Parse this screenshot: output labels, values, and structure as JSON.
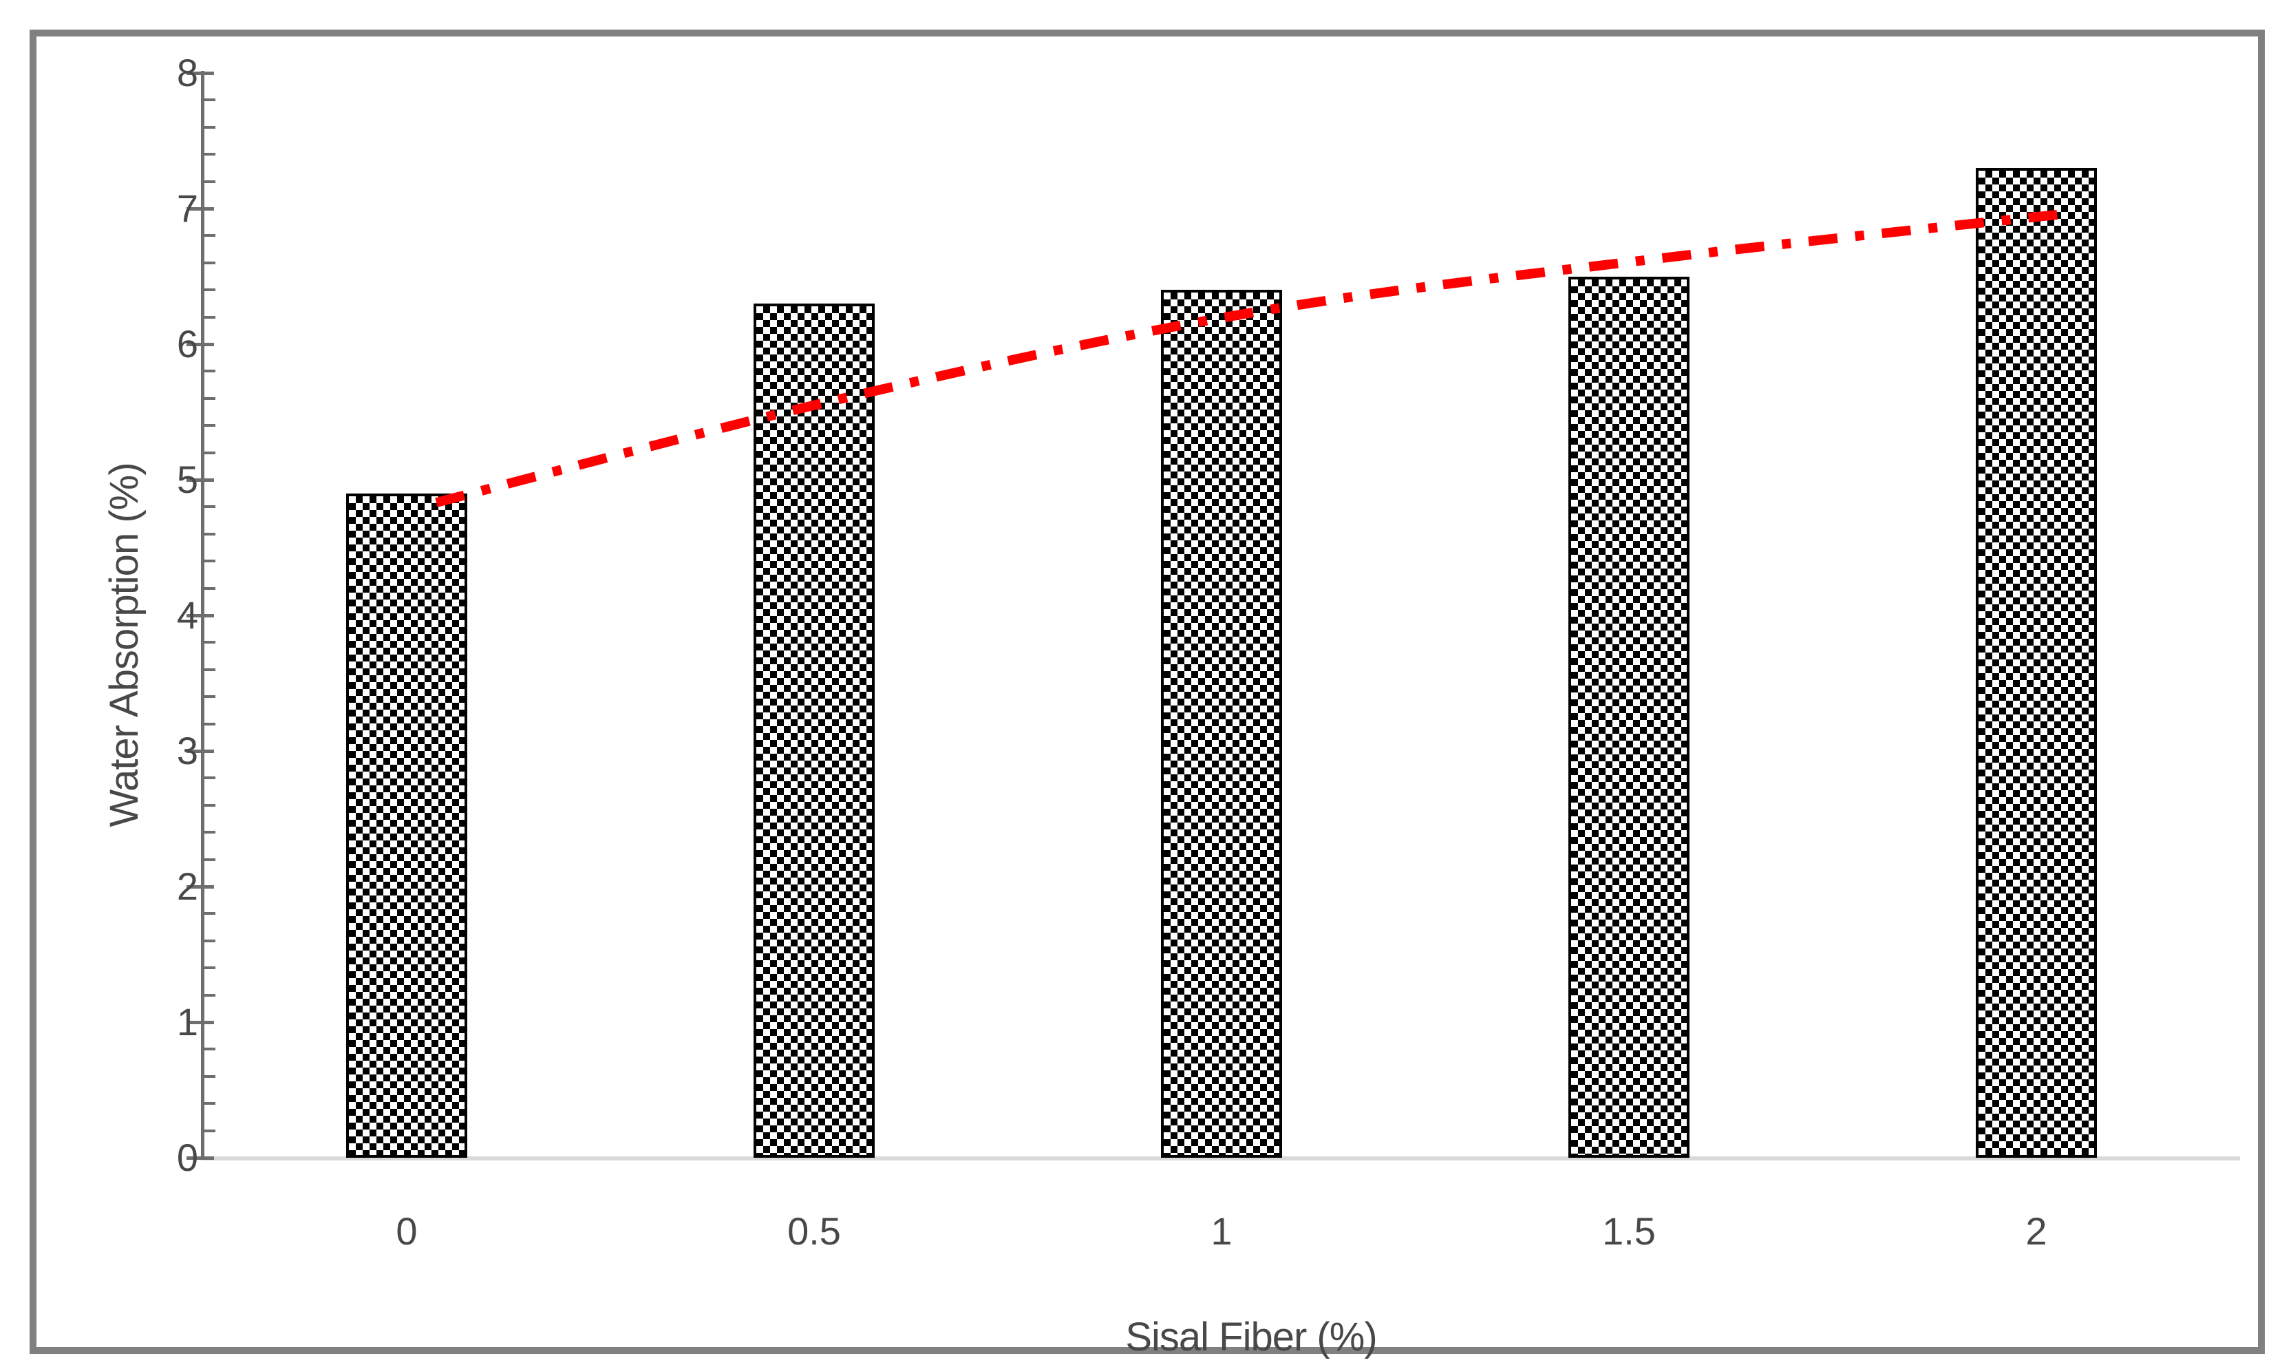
{
  "figure": {
    "border_color": "#808080",
    "background_color": "#ffffff",
    "axis_color": "#6e6e6e",
    "baseline_color": "#d9d9d9",
    "text_color": "#484848"
  },
  "chart_data": {
    "type": "bar",
    "title": "",
    "xlabel": "Sisal Fiber (%)",
    "ylabel": "Water Absorption (%)",
    "categories": [
      "0",
      "0.5",
      "1",
      "1.5",
      "2"
    ],
    "series": [
      {
        "name": "Water Absorption bars",
        "type": "bar",
        "fill": "black-white-checker-pattern",
        "values": [
          4.9,
          6.3,
          6.4,
          6.5,
          7.3
        ]
      },
      {
        "name": "Trendline",
        "type": "line",
        "line_style": "dash-dot",
        "color": "#ff0000",
        "values": [
          5.05,
          5.82,
          6.45,
          6.85,
          7.18
        ]
      }
    ],
    "ylim": [
      0,
      8
    ],
    "y_major_step": 1,
    "y_minor_step": 0.2,
    "y_tick_labels": [
      "0",
      "1",
      "2",
      "3",
      "4",
      "5",
      "6",
      "7",
      "8"
    ],
    "grid": false,
    "legend_position": "none"
  }
}
